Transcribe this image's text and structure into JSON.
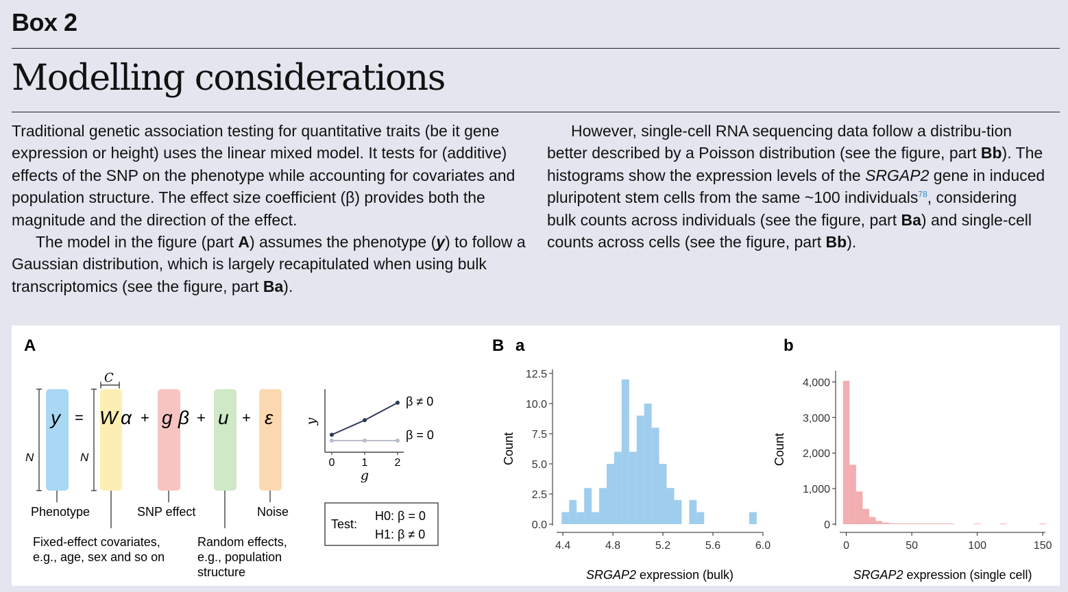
{
  "box_label": "Box 2",
  "title": "Modelling considerations",
  "left_column": {
    "p1": "Traditional genetic association testing for quantitative traits (be it gene expression or height) uses the linear mixed model. It tests for (additive) effects of the SNP on the phenotype while accounting for covariates and population structure. The effect size coefficient (β) provides both the magnitude and the direction of the effect.",
    "p2_a": "The model in the figure (part ",
    "p2_b": "A",
    "p2_c": ") assumes the phenotype (",
    "p2_d": "y",
    "p2_e": ") to follow a Gaussian distribution, which is largely recapitulated when using bulk transcriptomics (see the figure, part ",
    "p2_f": "Ba",
    "p2_g": ")."
  },
  "right_column": {
    "a": "However, single-cell RNA sequencing data follow a distribu-tion better described by a Poisson distribution (see the figure, part ",
    "b": "Bb",
    "c": "). The histograms show the expression levels of the ",
    "d": "SRGAP2",
    "e": " gene in induced pluripotent stem cells from the same ~100 individuals",
    "ref": "78",
    "f": ", considering bulk counts across individuals (see the figure, part ",
    "g": "Ba",
    "h": ") and single-cell counts across cells (see the figure, part ",
    "i": "Bb",
    "j": ")."
  },
  "panel_a": {
    "label": "A",
    "c_label": "C",
    "n_label_1": "N",
    "n_label_2": "N",
    "eq": {
      "y": "y",
      "eq": "=",
      "W": "W",
      "alpha": "α",
      "plus1": "+",
      "g": "g",
      "beta": "β",
      "plus2": "+",
      "u": "u",
      "plus3": "+",
      "eps": "ε"
    },
    "labels": {
      "phenotype": "Phenotype",
      "snp": "SNP effect",
      "noise": "Noise",
      "fixed_1": "Fixed-effect covariates,",
      "fixed_2": "e.g., age, sex and so on",
      "random_1": "Random effects,",
      "random_2": "e.g., population",
      "random_3": "structure"
    },
    "mini_plot": {
      "ylabel": "y",
      "xlabel": "g",
      "ticks": [
        "0",
        "1",
        "2"
      ],
      "beta_nonzero": "β ≠ 0",
      "beta_zero": "β = 0",
      "line_nonzero": [
        0.3,
        0.55,
        0.85
      ],
      "line_zero": [
        0.2,
        0.2,
        0.2
      ]
    },
    "test": {
      "label": "Test:",
      "h0": "H0:  β = 0",
      "h1": "H1:  β ≠ 0"
    }
  },
  "colors": {
    "phenotype": "#a8d8f4",
    "covariates": "#fdeeb4",
    "snp": "#f7c4c2",
    "random": "#cfe8c6",
    "noise": "#fcd9b0",
    "bulk": "#9fcdee",
    "single": "#f2aeb0"
  },
  "chart_data": [
    {
      "panel": "B a",
      "panel_b": "B",
      "panel_sub": "a",
      "type": "bar",
      "title": "",
      "xlabel_italic": "SRGAP2",
      "xlabel_rest": " expression (bulk)",
      "ylabel": "Count",
      "xlim": [
        4.35,
        6.0
      ],
      "ylim": [
        0,
        12.5
      ],
      "xticks": [
        "4.4",
        "4.8",
        "5.2",
        "5.6",
        "6.0"
      ],
      "yticks": [
        "0.0",
        "2.5",
        "5.0",
        "7.5",
        "10.0",
        "12.5"
      ],
      "bin_width": 0.06,
      "bin_starts": [
        4.39,
        4.45,
        4.51,
        4.57,
        4.63,
        4.69,
        4.75,
        4.81,
        4.87,
        4.93,
        4.99,
        5.05,
        5.11,
        5.17,
        5.23,
        5.29,
        5.35,
        5.41,
        5.47,
        5.53,
        5.59,
        5.65,
        5.71,
        5.77,
        5.83,
        5.89
      ],
      "values": [
        1,
        2,
        1,
        3,
        1,
        3,
        5,
        6,
        12,
        6,
        9,
        10,
        8,
        5,
        3,
        2,
        0,
        2,
        1,
        0,
        0,
        0,
        0,
        0,
        0,
        1
      ]
    },
    {
      "panel": "b",
      "panel_sub": "b",
      "type": "bar",
      "title": "",
      "xlabel_italic": "SRGAP2",
      "xlabel_rest": " expression (single cell)",
      "ylabel": "Count",
      "xlim": [
        -5,
        152
      ],
      "ylim": [
        0,
        4200
      ],
      "xticks": [
        "0",
        "50",
        "100",
        "150"
      ],
      "yticks": [
        "0",
        "1,000",
        "2,000",
        "3,000",
        "4,000"
      ],
      "bin_width": 5,
      "bin_starts": [
        -2.5,
        2.5,
        7.5,
        12.5,
        17.5,
        22.5,
        27.5,
        32.5,
        37.5,
        42.5,
        47.5,
        52.5,
        57.5,
        62.5,
        67.5,
        72.5,
        77.5,
        97.5,
        117.5,
        147.5
      ],
      "values": [
        4030,
        1670,
        920,
        430,
        200,
        90,
        45,
        25,
        15,
        10,
        8,
        6,
        5,
        4,
        3,
        3,
        2,
        2,
        2,
        1
      ]
    }
  ]
}
